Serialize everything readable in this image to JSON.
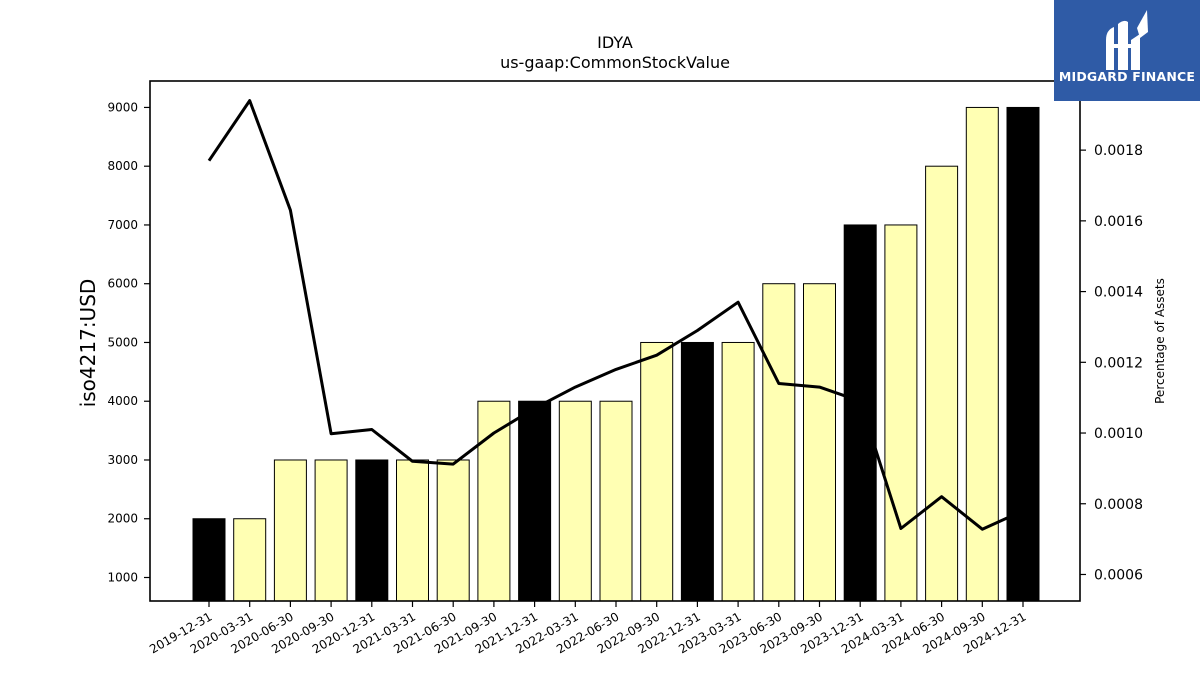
{
  "chart_data": {
    "type": "bar",
    "title": "IDYA",
    "subtitle": "us-gaap:CommonStockValue",
    "ylabel": "iso4217:USD",
    "y2label": "Percentage of Assets",
    "categories": [
      "2019-12-31",
      "2020-03-31",
      "2020-06-30",
      "2020-09-30",
      "2020-12-31",
      "2021-03-31",
      "2021-06-30",
      "2021-09-30",
      "2021-12-31",
      "2022-03-31",
      "2022-06-30",
      "2022-09-30",
      "2022-12-31",
      "2023-03-31",
      "2023-06-30",
      "2023-09-30",
      "2023-12-31",
      "2024-03-31",
      "2024-06-30",
      "2024-09-30",
      "2024-12-31"
    ],
    "series": [
      {
        "type": "bar",
        "axis": "left",
        "values": [
          2000,
          2000,
          3000,
          3000,
          3000,
          3000,
          3000,
          4000,
          4000,
          4000,
          4000,
          5000,
          5000,
          5000,
          6000,
          6000,
          7000,
          7000,
          8000,
          9000,
          9000
        ],
        "colors": [
          "#000000",
          "#ffffb3",
          "#ffffb3",
          "#ffffb3",
          "#000000",
          "#ffffb3",
          "#ffffb3",
          "#ffffb3",
          "#000000",
          "#ffffb3",
          "#ffffb3",
          "#ffffb3",
          "#000000",
          "#ffffb3",
          "#ffffb3",
          "#ffffb3",
          "#000000",
          "#ffffb3",
          "#ffffb3",
          "#ffffb3",
          "#000000"
        ]
      },
      {
        "type": "line",
        "axis": "right",
        "color": "#000000",
        "values": [
          0.00177,
          0.00194,
          0.00163,
          0.000998,
          0.00101,
          0.00092,
          0.000912,
          0.001,
          0.00107,
          0.00113,
          0.00118,
          0.00122,
          0.00129,
          0.00137,
          0.00114,
          0.00113,
          0.00109,
          0.00073,
          0.00082,
          0.000728,
          0.00078
        ]
      }
    ],
    "ylim": [
      600,
      9450
    ],
    "y2lim": [
      0.000525,
      0.0019955
    ],
    "yticks": [
      1000,
      2000,
      3000,
      4000,
      5000,
      6000,
      7000,
      8000,
      9000
    ],
    "y2ticks": [
      "0.0006",
      "0.0008",
      "0.0010",
      "0.0012",
      "0.0014",
      "0.0016",
      "0.0018"
    ],
    "grid": false,
    "legend": "none"
  },
  "logo": {
    "text": "MIDGARD FINANCE",
    "background": "#2f5ba6"
  }
}
